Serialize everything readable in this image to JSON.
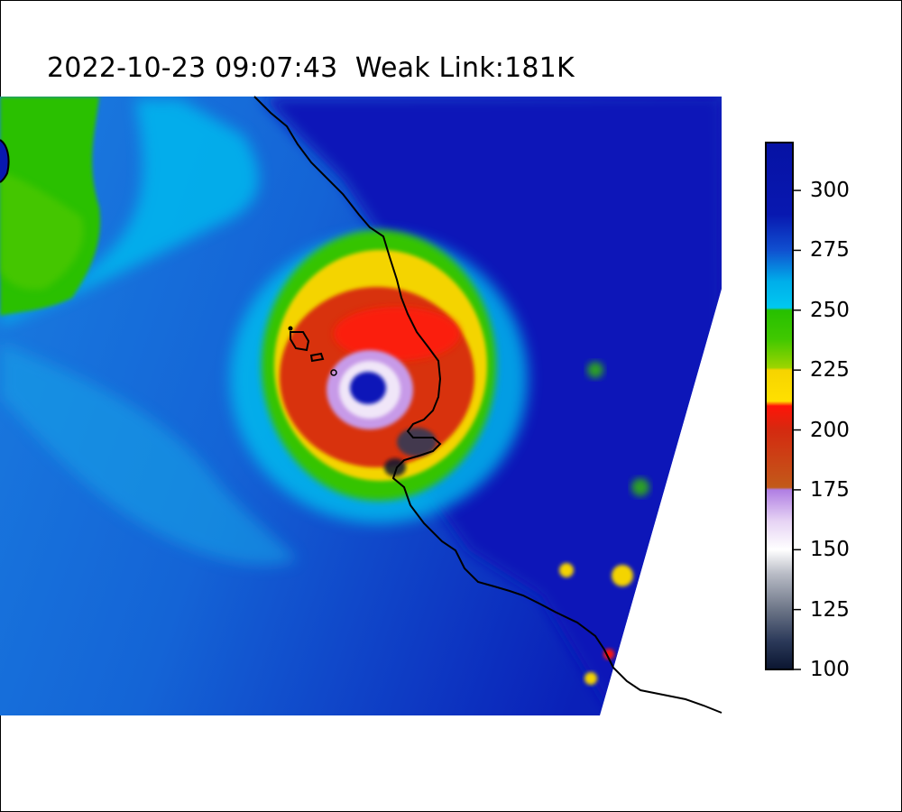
{
  "title": "2022-10-23 09:07:43  Weak Link:181K",
  "colorbar": {
    "min": 100,
    "max": 320,
    "ticks": [
      "100",
      "125",
      "150",
      "175",
      "200",
      "225",
      "250",
      "275",
      "300"
    ],
    "stops": [
      {
        "v": 100,
        "c": "#0a1530"
      },
      {
        "v": 112,
        "c": "#2c3a5a"
      },
      {
        "v": 125,
        "c": "#6c7587"
      },
      {
        "v": 140,
        "c": "#b9bcc6"
      },
      {
        "v": 150,
        "c": "#ffffff"
      },
      {
        "v": 162,
        "c": "#e6d3f4"
      },
      {
        "v": 175,
        "c": "#b07ee3"
      },
      {
        "v": 176,
        "c": "#c25a1a"
      },
      {
        "v": 200,
        "c": "#d42a10"
      },
      {
        "v": 210,
        "c": "#ff1408"
      },
      {
        "v": 212,
        "c": "#ffe000"
      },
      {
        "v": 225,
        "c": "#f6d400"
      },
      {
        "v": 226,
        "c": "#9cd400"
      },
      {
        "v": 238,
        "c": "#40c800"
      },
      {
        "v": 250,
        "c": "#26c000"
      },
      {
        "v": 251,
        "c": "#00c8f0"
      },
      {
        "v": 262,
        "c": "#00aeea"
      },
      {
        "v": 275,
        "c": "#1050d0"
      },
      {
        "v": 290,
        "c": "#0818b0"
      },
      {
        "v": 320,
        "c": "#0612a4"
      }
    ]
  },
  "colors": {
    "cold_ring": "#d42a10",
    "eye": "#0a14b8",
    "warm_background": "#0a18b8",
    "coastline": "#000000"
  }
}
